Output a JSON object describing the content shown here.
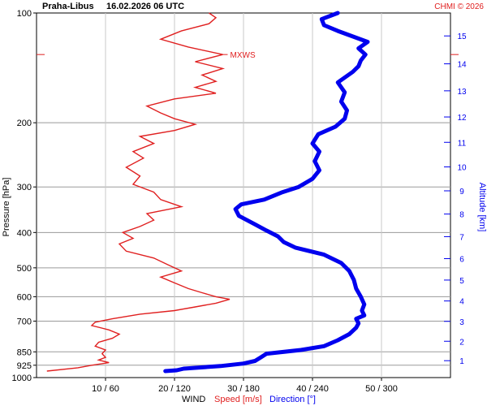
{
  "header": {
    "station": "Praha-Libus",
    "datetime": "16.02.2026 06 UTC",
    "copyright": "CHMI © 2026"
  },
  "colors": {
    "speed": "#e02020",
    "direction": "#0000ee",
    "grid": "#c8c8c8",
    "axis": "#000000"
  },
  "chart_data": {
    "type": "line",
    "title": "Praha-Libus 16.02.2026 06 UTC",
    "y_axis": {
      "label": "Pressure [hPa]",
      "scale": "log",
      "range": [
        1000,
        100
      ],
      "ticks": [
        100,
        200,
        300,
        400,
        500,
        600,
        700,
        850,
        925,
        1000
      ]
    },
    "y2_axis": {
      "label": "Altitude [km]",
      "range": [
        0,
        16
      ],
      "ticks": [
        1,
        2,
        3,
        4,
        5,
        6,
        7,
        8,
        9,
        10,
        11,
        12,
        13,
        14,
        15
      ]
    },
    "x_axis": {
      "label": "WIND",
      "speed_range": [
        0,
        60
      ],
      "direction_range": [
        0,
        360
      ],
      "ticks": [
        {
          "speed": 10,
          "direction": 60,
          "label": "10 / 60"
        },
        {
          "speed": 20,
          "direction": 120,
          "label": "20 / 120"
        },
        {
          "speed": 30,
          "direction": 180,
          "label": "30 / 180"
        },
        {
          "speed": 40,
          "direction": 240,
          "label": "40 / 240"
        },
        {
          "speed": 50,
          "direction": 300,
          "label": "50 / 300"
        }
      ]
    },
    "legend": {
      "speed": "Speed [m/s]",
      "direction": "Direction [°]"
    },
    "annotation": {
      "text": "MXWS",
      "pressure": 130,
      "speed": 27
    },
    "series": [
      {
        "name": "Speed [m/s]",
        "unit": "m/s",
        "points": [
          {
            "p": 960,
            "v": 1.5
          },
          {
            "p": 940,
            "v": 6
          },
          {
            "p": 925,
            "v": 8
          },
          {
            "p": 910,
            "v": 10.5
          },
          {
            "p": 895,
            "v": 9
          },
          {
            "p": 880,
            "v": 10
          },
          {
            "p": 860,
            "v": 9.5
          },
          {
            "p": 840,
            "v": 10
          },
          {
            "p": 820,
            "v": 8.5
          },
          {
            "p": 800,
            "v": 9
          },
          {
            "p": 780,
            "v": 11
          },
          {
            "p": 760,
            "v": 12
          },
          {
            "p": 740,
            "v": 10.5
          },
          {
            "p": 720,
            "v": 8
          },
          {
            "p": 705,
            "v": 8.5
          },
          {
            "p": 690,
            "v": 11
          },
          {
            "p": 670,
            "v": 15
          },
          {
            "p": 655,
            "v": 20
          },
          {
            "p": 640,
            "v": 23
          },
          {
            "p": 625,
            "v": 26
          },
          {
            "p": 610,
            "v": 28
          },
          {
            "p": 600,
            "v": 26
          },
          {
            "p": 585,
            "v": 24
          },
          {
            "p": 570,
            "v": 22
          },
          {
            "p": 550,
            "v": 20
          },
          {
            "p": 530,
            "v": 18
          },
          {
            "p": 510,
            "v": 21
          },
          {
            "p": 490,
            "v": 19
          },
          {
            "p": 470,
            "v": 17
          },
          {
            "p": 450,
            "v": 13
          },
          {
            "p": 430,
            "v": 12
          },
          {
            "p": 415,
            "v": 14
          },
          {
            "p": 400,
            "v": 12.5
          },
          {
            "p": 385,
            "v": 15
          },
          {
            "p": 370,
            "v": 17
          },
          {
            "p": 355,
            "v": 16
          },
          {
            "p": 340,
            "v": 21
          },
          {
            "p": 325,
            "v": 18
          },
          {
            "p": 310,
            "v": 17
          },
          {
            "p": 295,
            "v": 14
          },
          {
            "p": 280,
            "v": 15
          },
          {
            "p": 265,
            "v": 13
          },
          {
            "p": 250,
            "v": 15.5
          },
          {
            "p": 240,
            "v": 14
          },
          {
            "p": 228,
            "v": 17
          },
          {
            "p": 218,
            "v": 15
          },
          {
            "p": 210,
            "v": 20
          },
          {
            "p": 202,
            "v": 23
          },
          {
            "p": 195,
            "v": 20
          },
          {
            "p": 188,
            "v": 18
          },
          {
            "p": 180,
            "v": 16
          },
          {
            "p": 172,
            "v": 20
          },
          {
            "p": 166,
            "v": 26
          },
          {
            "p": 160,
            "v": 23
          },
          {
            "p": 154,
            "v": 26
          },
          {
            "p": 148,
            "v": 24
          },
          {
            "p": 142,
            "v": 27
          },
          {
            "p": 136,
            "v": 23
          },
          {
            "p": 130,
            "v": 27
          },
          {
            "p": 124,
            "v": 22
          },
          {
            "p": 118,
            "v": 18
          },
          {
            "p": 112,
            "v": 21
          },
          {
            "p": 107,
            "v": 25
          },
          {
            "p": 103,
            "v": 26
          },
          {
            "p": 100,
            "v": 25
          }
        ]
      },
      {
        "name": "Direction [°]",
        "unit": "deg",
        "points": [
          {
            "p": 960,
            "v": 112
          },
          {
            "p": 955,
            "v": 122
          },
          {
            "p": 945,
            "v": 128
          },
          {
            "p": 930,
            "v": 160
          },
          {
            "p": 915,
            "v": 180
          },
          {
            "p": 900,
            "v": 190
          },
          {
            "p": 880,
            "v": 195
          },
          {
            "p": 860,
            "v": 200
          },
          {
            "p": 840,
            "v": 230
          },
          {
            "p": 820,
            "v": 250
          },
          {
            "p": 790,
            "v": 262
          },
          {
            "p": 760,
            "v": 272
          },
          {
            "p": 730,
            "v": 278
          },
          {
            "p": 710,
            "v": 280
          },
          {
            "p": 690,
            "v": 278
          },
          {
            "p": 675,
            "v": 285
          },
          {
            "p": 655,
            "v": 283
          },
          {
            "p": 630,
            "v": 285
          },
          {
            "p": 600,
            "v": 282
          },
          {
            "p": 570,
            "v": 278
          },
          {
            "p": 540,
            "v": 276
          },
          {
            "p": 510,
            "v": 272
          },
          {
            "p": 485,
            "v": 265
          },
          {
            "p": 460,
            "v": 250
          },
          {
            "p": 440,
            "v": 225
          },
          {
            "p": 425,
            "v": 215
          },
          {
            "p": 410,
            "v": 210
          },
          {
            "p": 395,
            "v": 200
          },
          {
            "p": 380,
            "v": 190
          },
          {
            "p": 360,
            "v": 176
          },
          {
            "p": 345,
            "v": 173
          },
          {
            "p": 335,
            "v": 178
          },
          {
            "p": 325,
            "v": 198
          },
          {
            "p": 310,
            "v": 214
          },
          {
            "p": 300,
            "v": 228
          },
          {
            "p": 285,
            "v": 240
          },
          {
            "p": 270,
            "v": 246
          },
          {
            "p": 255,
            "v": 242
          },
          {
            "p": 240,
            "v": 246
          },
          {
            "p": 228,
            "v": 240
          },
          {
            "p": 215,
            "v": 245
          },
          {
            "p": 205,
            "v": 260
          },
          {
            "p": 195,
            "v": 268
          },
          {
            "p": 185,
            "v": 270
          },
          {
            "p": 175,
            "v": 265
          },
          {
            "p": 165,
            "v": 268
          },
          {
            "p": 155,
            "v": 262
          },
          {
            "p": 145,
            "v": 275
          },
          {
            "p": 140,
            "v": 280
          },
          {
            "p": 135,
            "v": 282
          },
          {
            "p": 130,
            "v": 286
          },
          {
            "p": 125,
            "v": 280
          },
          {
            "p": 120,
            "v": 288
          },
          {
            "p": 116,
            "v": 275
          },
          {
            "p": 112,
            "v": 262
          },
          {
            "p": 108,
            "v": 250
          },
          {
            "p": 104,
            "v": 248
          },
          {
            "p": 100,
            "v": 262
          }
        ]
      }
    ]
  }
}
